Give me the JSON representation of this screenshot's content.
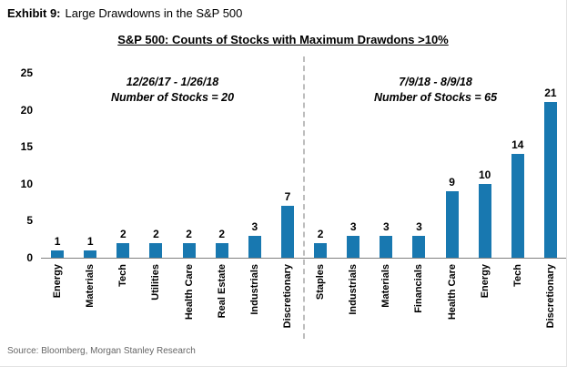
{
  "exhibit": {
    "label": "Exhibit 9:",
    "title": "Large Drawdowns in the S&P 500"
  },
  "chart_data": {
    "type": "bar",
    "title": "S&P 500: Counts of Stocks with Maximum Drawdons >10%",
    "xlabel": "",
    "ylabel": "",
    "ylim": [
      0,
      25
    ],
    "yticks": [
      0,
      5,
      10,
      15,
      20,
      25
    ],
    "grid": false,
    "legend": "none",
    "bar_color": "#1878b0",
    "value_labels_shown": true,
    "groups": [
      {
        "period": "12/26/17 - 1/26/18",
        "annotation": "Number of Stocks = 20",
        "categories": [
          "Energy",
          "Materials",
          "Tech",
          "Utilities",
          "Health Care",
          "Real Estate",
          "Industrials",
          "Discretionary"
        ],
        "values": [
          1,
          1,
          2,
          2,
          2,
          2,
          3,
          7
        ]
      },
      {
        "period": "7/9/18 - 8/9/18",
        "annotation": "Number of Stocks = 65",
        "categories": [
          "Staples",
          "Industrials",
          "Materials",
          "Financials",
          "Health Care",
          "Energy",
          "Tech",
          "Discretionary"
        ],
        "values": [
          2,
          3,
          3,
          3,
          9,
          10,
          14,
          21
        ]
      }
    ]
  },
  "source": "Source: Bloomberg, Morgan Stanley Research"
}
